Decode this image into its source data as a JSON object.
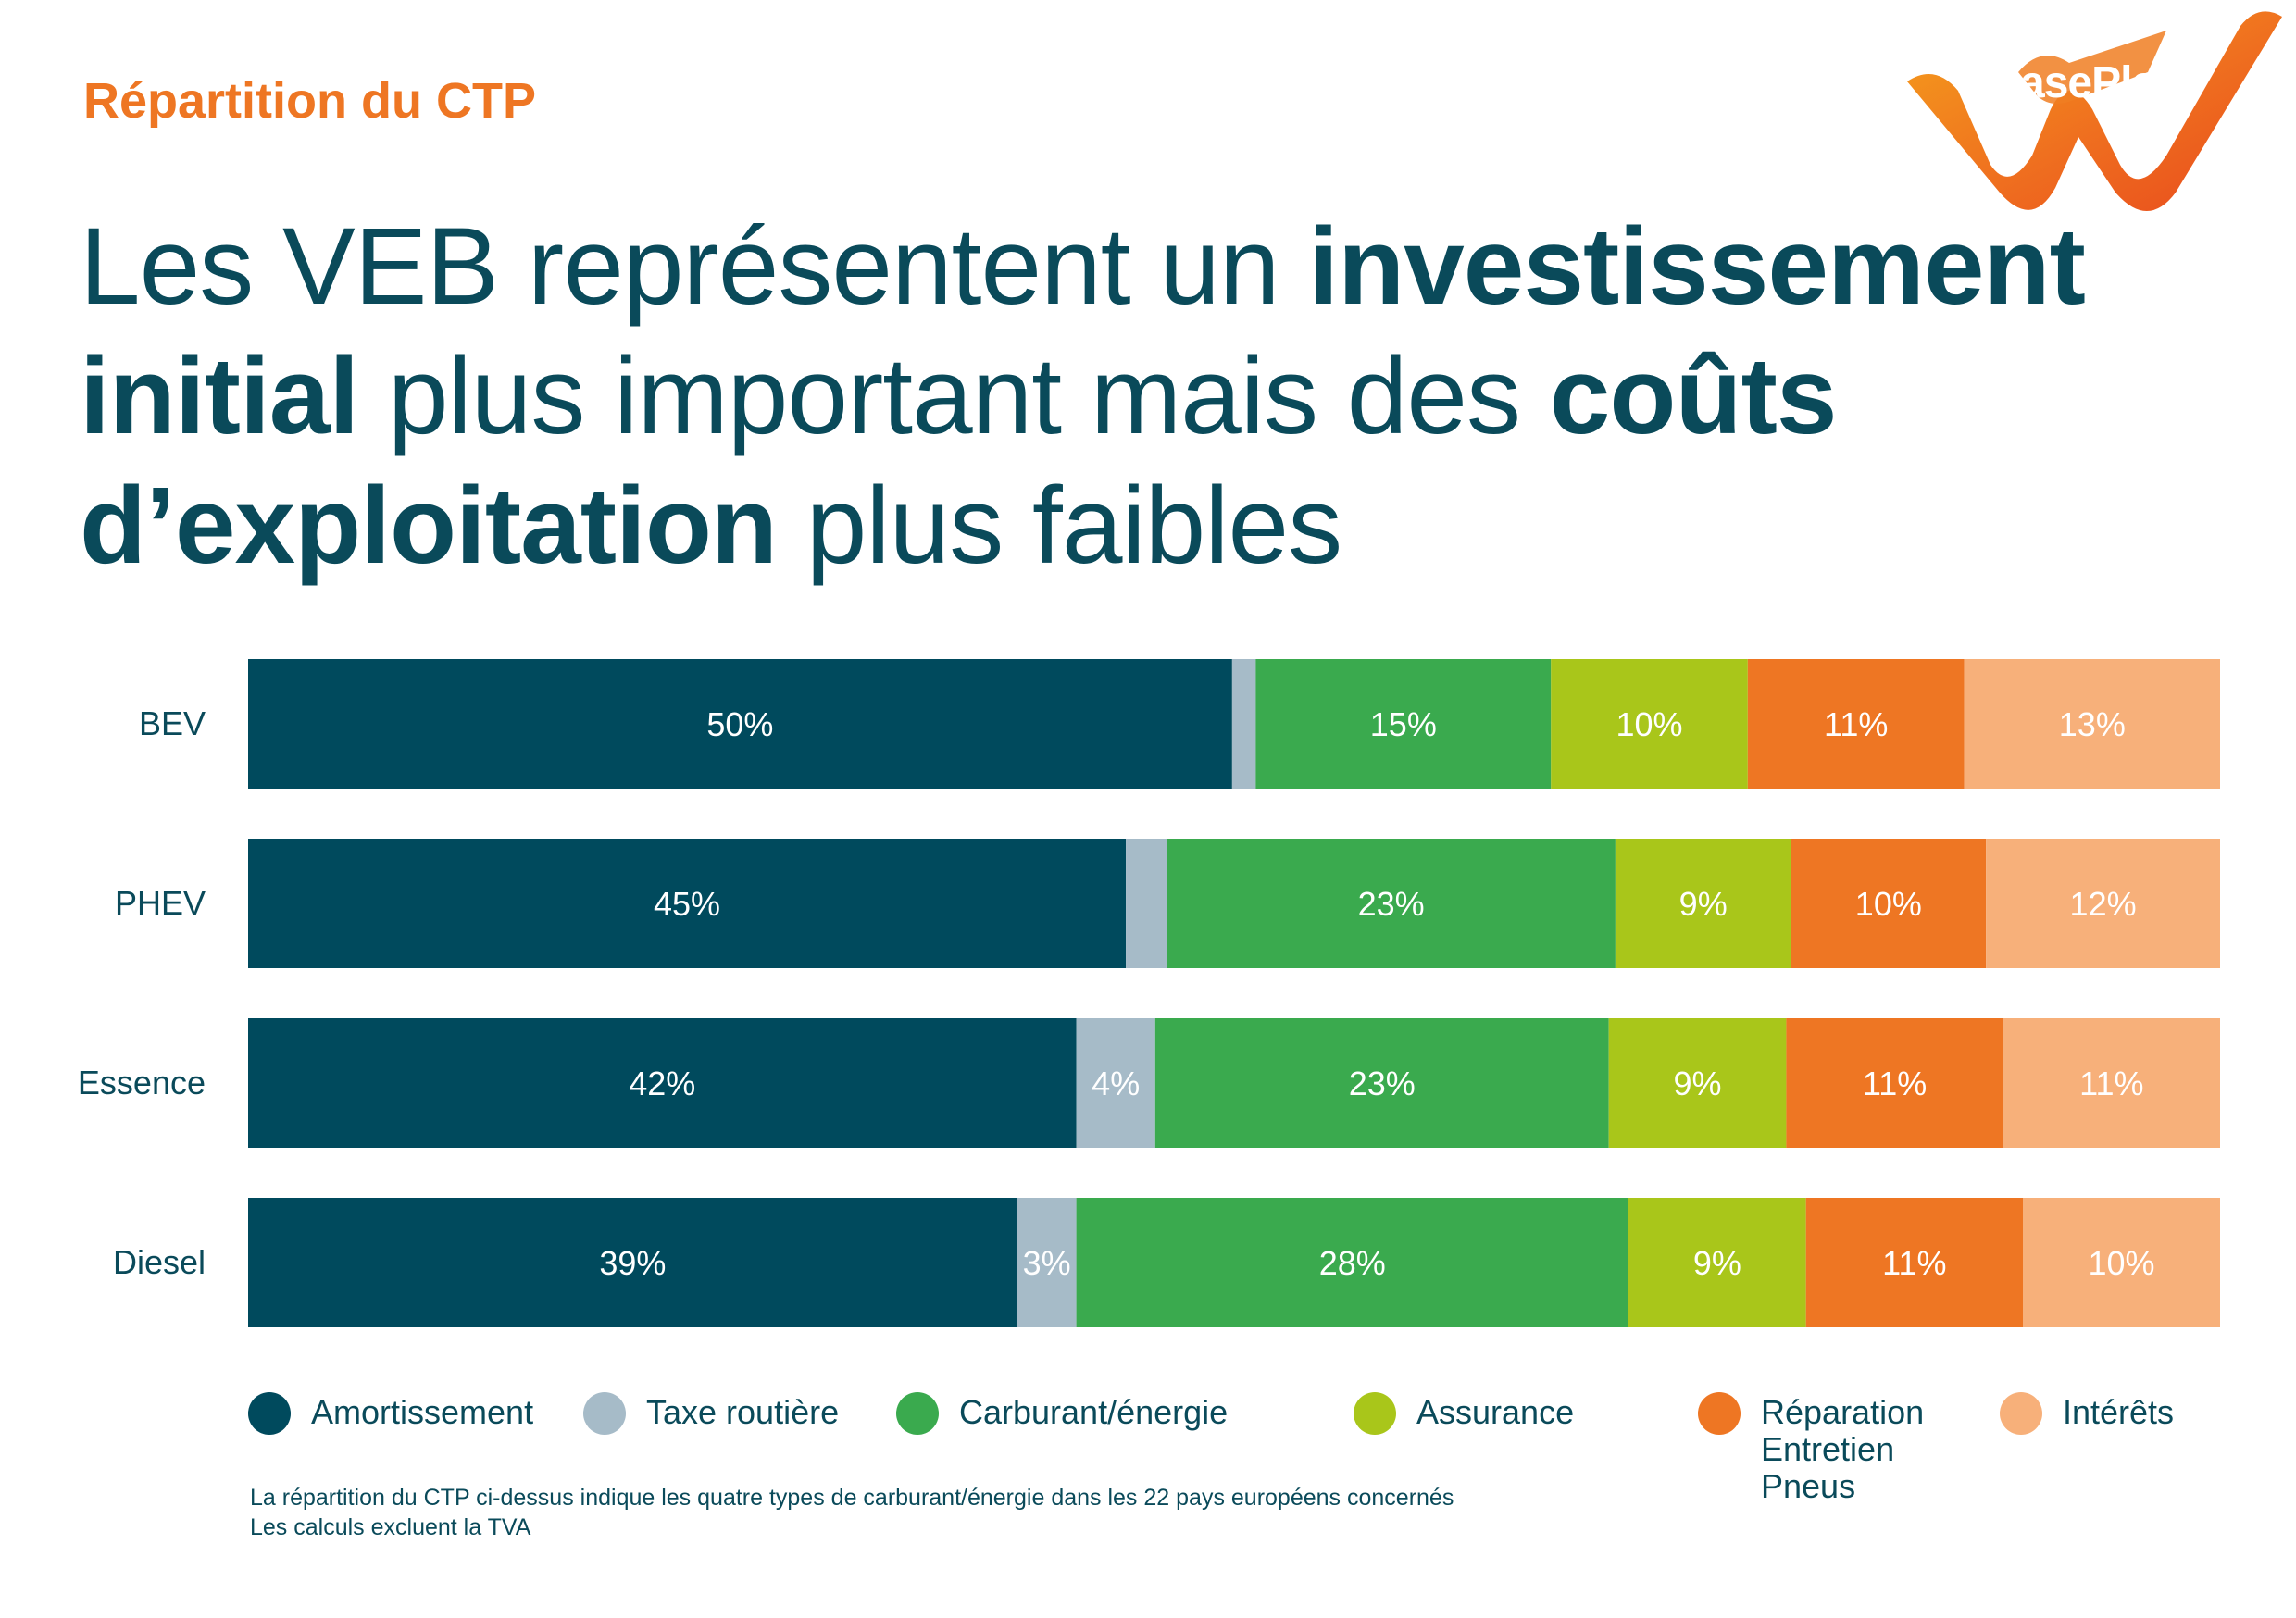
{
  "kicker": "Répartition du CTP",
  "headline": {
    "p1": "Les VEB représentent un ",
    "b1": "investissement initial",
    "p2": " plus important mais des ",
    "b2": "coûts d’exploitation",
    "p3": " plus faibles"
  },
  "logo": {
    "text": "LeasePlan",
    "icon": "leaseplan-logo"
  },
  "colors": {
    "title_dark": "#0a4a5a",
    "kicker_orange": "#ee7623",
    "amortissement": "#004a5d",
    "taxe": "#a6bbc8",
    "carburant": "#3aaa4e",
    "assurance": "#a9c61a",
    "reparation": "#ee7623",
    "interets": "#f7b07a"
  },
  "chart_data": {
    "type": "bar",
    "orientation": "horizontal",
    "stacked": true,
    "normalized": true,
    "categories": [
      "BEV",
      "PHEV",
      "Essence",
      "Diesel"
    ],
    "series": [
      {
        "name": "Amortissement",
        "values": [
          50,
          45,
          42,
          39
        ],
        "labels": [
          "50%",
          "45%",
          "42%",
          "39%"
        ]
      },
      {
        "name": "Taxe routière",
        "values": [
          1.2,
          2.1,
          4,
          3
        ],
        "labels": [
          "",
          "",
          "4%",
          "3%"
        ]
      },
      {
        "name": "Carburant/énergie",
        "values": [
          15,
          23,
          23,
          28
        ],
        "labels": [
          "15%",
          "23%",
          "23%",
          "28%"
        ]
      },
      {
        "name": "Assurance",
        "values": [
          10,
          9,
          9,
          9
        ],
        "labels": [
          "10%",
          "9%",
          "9%",
          "9%"
        ]
      },
      {
        "name": "Réparation\nEntretien\nPneus",
        "values": [
          11,
          10,
          11,
          11
        ],
        "labels": [
          "11%",
          "10%",
          "11%",
          "11%"
        ]
      },
      {
        "name": "Intérêts",
        "values": [
          13,
          12,
          11,
          10
        ],
        "labels": [
          "13%",
          "12%",
          "11%",
          "10%"
        ]
      }
    ],
    "xlim": [
      0,
      100
    ],
    "grid": false,
    "legend_position": "bottom"
  },
  "footnote": [
    "La répartition du CTP ci-dessus indique les quatre types de carburant/énergie dans les 22 pays européens concernés",
    "Les calculs excluent la TVA"
  ]
}
